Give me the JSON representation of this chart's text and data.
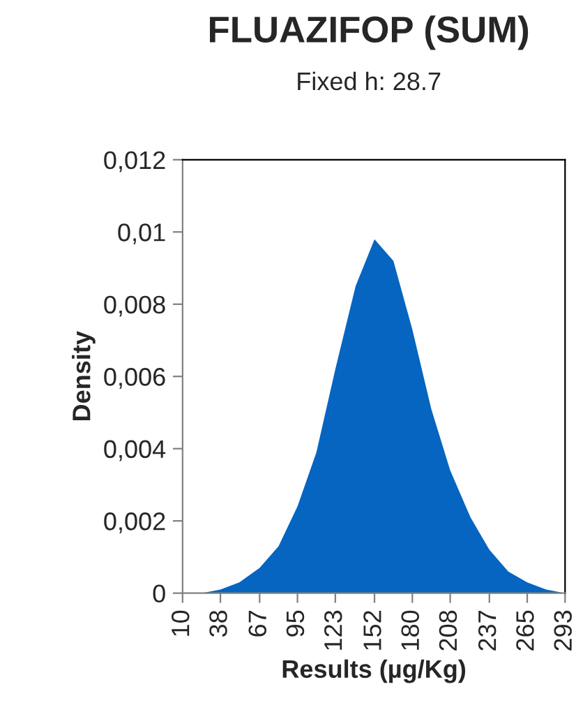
{
  "chart_data": {
    "type": "area",
    "title": "FLUAZIFOP (SUM)",
    "subtitle": "Fixed h: 28.7",
    "xlabel": "Results (µg/Kg)",
    "ylabel": "Density",
    "x": [
      10,
      24,
      38,
      52,
      67,
      81,
      95,
      109,
      123,
      138,
      152,
      166,
      180,
      194,
      208,
      223,
      237,
      251,
      265,
      279,
      293
    ],
    "series": [
      {
        "color": "#0565c0",
        "values": [
          0.0,
          0.0,
          0.0001,
          0.0003,
          0.0007,
          0.0013,
          0.0024,
          0.0039,
          0.0062,
          0.0085,
          0.0098,
          0.0092,
          0.0073,
          0.0051,
          0.0034,
          0.0021,
          0.0012,
          0.0006,
          0.0003,
          0.0001,
          0.0
        ]
      }
    ],
    "xlim": [
      10,
      293
    ],
    "xticks": [
      10,
      38,
      67,
      95,
      123,
      152,
      180,
      208,
      237,
      265,
      293
    ],
    "ylim": [
      0,
      0.012
    ],
    "yticks": [
      0,
      {
        "value": 0.002,
        "label": "0,002"
      },
      {
        "value": 0.004,
        "label": "0,004"
      },
      {
        "value": 0.006,
        "label": "0,006"
      },
      {
        "value": 0.008,
        "label": "0,008"
      },
      {
        "value": 0.01,
        "label": "0,01"
      },
      {
        "value": 0.012,
        "label": "0,012"
      }
    ],
    "grid": false,
    "legend": false
  }
}
